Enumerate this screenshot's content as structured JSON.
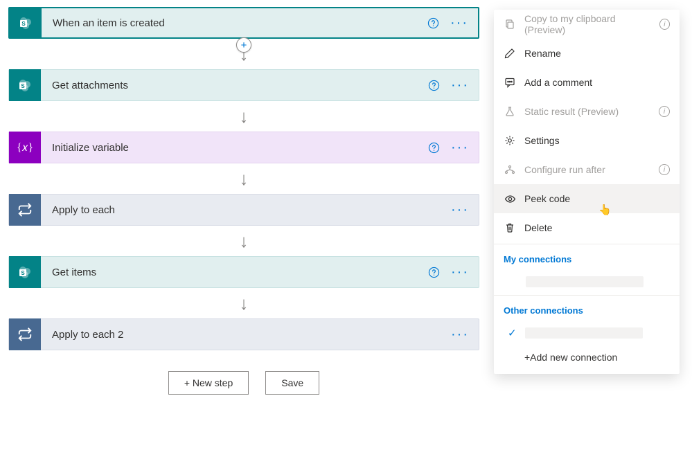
{
  "steps": [
    {
      "title": "When an item is created",
      "bg": "#e1efef",
      "border": "#038387",
      "iconBg": "#038387",
      "icon": "sharepoint",
      "showHelp": true,
      "selected": true
    },
    {
      "title": "Get attachments",
      "bg": "#e1efef",
      "border": "#c8e2e2",
      "iconBg": "#038387",
      "icon": "sharepoint",
      "showHelp": true
    },
    {
      "title": "Initialize variable",
      "bg": "#f1e4f9",
      "border": "#e3d1f0",
      "iconBg": "#8c00bf",
      "icon": "variable",
      "showHelp": true
    },
    {
      "title": "Apply to each",
      "bg": "#e8ebf1",
      "border": "#d7dbe5",
      "iconBg": "#486991",
      "icon": "loop",
      "showHelp": false
    },
    {
      "title": "Get items",
      "bg": "#e1efef",
      "border": "#c8e2e2",
      "iconBg": "#038387",
      "icon": "sharepoint",
      "showHelp": true
    },
    {
      "title": "Apply to each 2",
      "bg": "#e8ebf1",
      "border": "#d7dbe5",
      "iconBg": "#486991",
      "icon": "loop",
      "showHelp": false
    }
  ],
  "footer": {
    "newStep": "+ New step",
    "save": "Save"
  },
  "menu": {
    "items": [
      {
        "label": "Copy to my clipboard (Preview)",
        "icon": "copy",
        "disabled": true,
        "info": true
      },
      {
        "label": "Rename",
        "icon": "pencil",
        "disabled": false,
        "info": false
      },
      {
        "label": "Add a comment",
        "icon": "comment",
        "disabled": false,
        "info": false
      },
      {
        "label": "Static result (Preview)",
        "icon": "flask",
        "disabled": true,
        "info": true
      },
      {
        "label": "Settings",
        "icon": "gear",
        "disabled": false,
        "info": false
      },
      {
        "label": "Configure run after",
        "icon": "branch",
        "disabled": true,
        "info": true
      },
      {
        "label": "Peek code",
        "icon": "eye",
        "disabled": false,
        "info": false,
        "hover": true
      },
      {
        "label": "Delete",
        "icon": "trash",
        "disabled": false,
        "info": false
      }
    ],
    "myConnections": "My connections",
    "otherConnections": "Other connections",
    "addNew": "+Add new connection"
  }
}
